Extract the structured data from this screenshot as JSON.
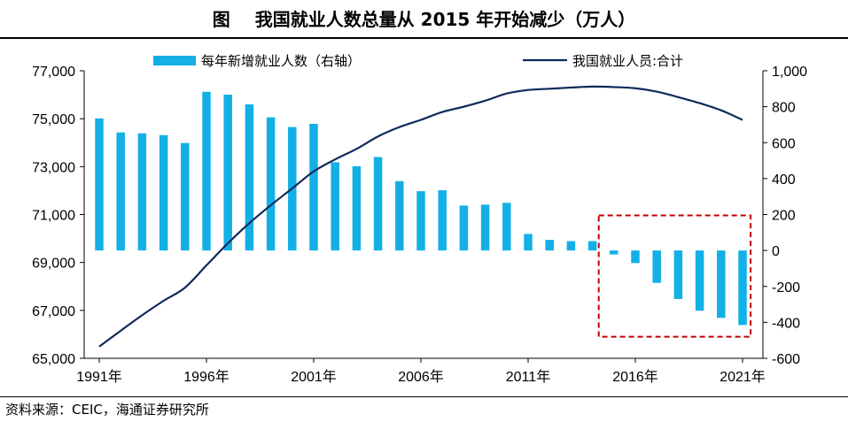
{
  "header": {
    "tag": "图",
    "title": "我国就业人数总量从 2015 年开始减少（万人）"
  },
  "source": "资料来源：CEIC，海通证券研究所",
  "chart_data": {
    "type": "bar+line",
    "x": [
      1991,
      1992,
      1993,
      1994,
      1995,
      1996,
      1997,
      1998,
      1999,
      2000,
      2001,
      2002,
      2003,
      2004,
      2005,
      2006,
      2007,
      2008,
      2009,
      2010,
      2011,
      2012,
      2013,
      2014,
      2015,
      2016,
      2017,
      2018,
      2019,
      2020,
      2021
    ],
    "x_tick_labels": [
      "1991年",
      "1996年",
      "2001年",
      "2006年",
      "2011年",
      "2016年",
      "2021年"
    ],
    "x_tick_years": [
      1991,
      1996,
      2001,
      2006,
      2011,
      2016,
      2021
    ],
    "series": [
      {
        "name": "每年新增就业人数（右轴）",
        "type": "bar",
        "axis": "right",
        "color": "#13B0E6",
        "values": [
          735,
          657,
          652,
          642,
          598,
          883,
          867,
          813,
          741,
          687,
          705,
          491,
          469,
          520,
          386,
          330,
          335,
          250,
          255,
          265,
          92,
          59,
          52,
          52,
          -22,
          -70,
          -180,
          -270,
          -335,
          -375,
          -415
        ]
      },
      {
        "name": "我国就业人员:合计",
        "type": "line",
        "axis": "left",
        "color": "#0F2A5C",
        "values": [
          65490,
          66150,
          66800,
          67400,
          67950,
          68880,
          69800,
          70640,
          71390,
          72090,
          72800,
          73300,
          73740,
          74260,
          74650,
          74950,
          75280,
          75500,
          75750,
          76050,
          76200,
          76250,
          76300,
          76340,
          76320,
          76270,
          76130,
          75900,
          75650,
          75350,
          74950
        ]
      }
    ],
    "y_left": {
      "min": 65000,
      "max": 77000,
      "ticks": [
        "65,000",
        "67,000",
        "69,000",
        "71,000",
        "73,000",
        "75,000",
        "77,000"
      ],
      "tick_values": [
        65000,
        67000,
        69000,
        71000,
        73000,
        75000,
        77000
      ]
    },
    "y_right": {
      "min": -600,
      "max": 1000,
      "ticks": [
        "-600",
        "-400",
        "-200",
        "0",
        "200",
        "400",
        "600",
        "800",
        "1,000"
      ],
      "tick_values": [
        -600,
        -400,
        -200,
        0,
        200,
        400,
        600,
        800,
        1000
      ]
    },
    "highlight_box": {
      "x_from": 2014.5,
      "x_to": 2021.5,
      "y_right_from": -480,
      "y_right_to": 195,
      "color": "#C00000",
      "style": "dashed"
    },
    "legend_position": "top"
  }
}
